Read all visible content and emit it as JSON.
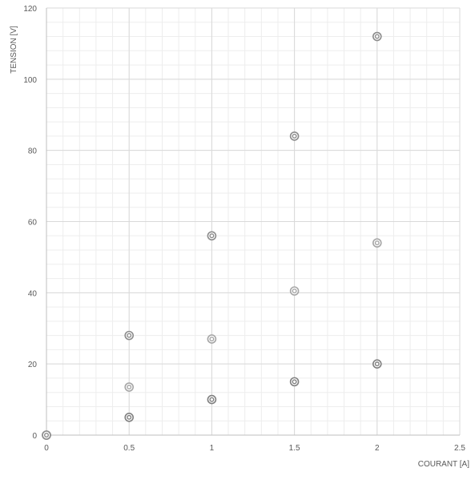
{
  "chart_data": {
    "type": "scatter",
    "title": "",
    "xlabel": "COURANT [A]",
    "ylabel": "TENSION [V]",
    "xlim": [
      0,
      2.5
    ],
    "ylim": [
      0,
      120
    ],
    "x_ticks": [
      "0",
      "0.5",
      "1",
      "1.5",
      "2",
      "2.5"
    ],
    "y_ticks": [
      "0",
      "20",
      "40",
      "60",
      "80",
      "100",
      "120"
    ],
    "grid": true,
    "legend": "none",
    "series": [
      {
        "color": "#808080",
        "marker": "double-circle",
        "points": [
          [
            0,
            0
          ],
          [
            0.5,
            5
          ],
          [
            1,
            10
          ],
          [
            1.5,
            15
          ],
          [
            2,
            20
          ]
        ]
      },
      {
        "color": "#a6a6a6",
        "marker": "double-circle",
        "points": [
          [
            0,
            0
          ],
          [
            0.5,
            13.5
          ],
          [
            1,
            27
          ],
          [
            1.5,
            40.5
          ],
          [
            2,
            54
          ]
        ]
      },
      {
        "color": "#8c8c8c",
        "marker": "double-circle",
        "points": [
          [
            0,
            0
          ],
          [
            0.5,
            28
          ],
          [
            1,
            56
          ],
          [
            1.5,
            84
          ],
          [
            2,
            112
          ]
        ]
      }
    ]
  }
}
